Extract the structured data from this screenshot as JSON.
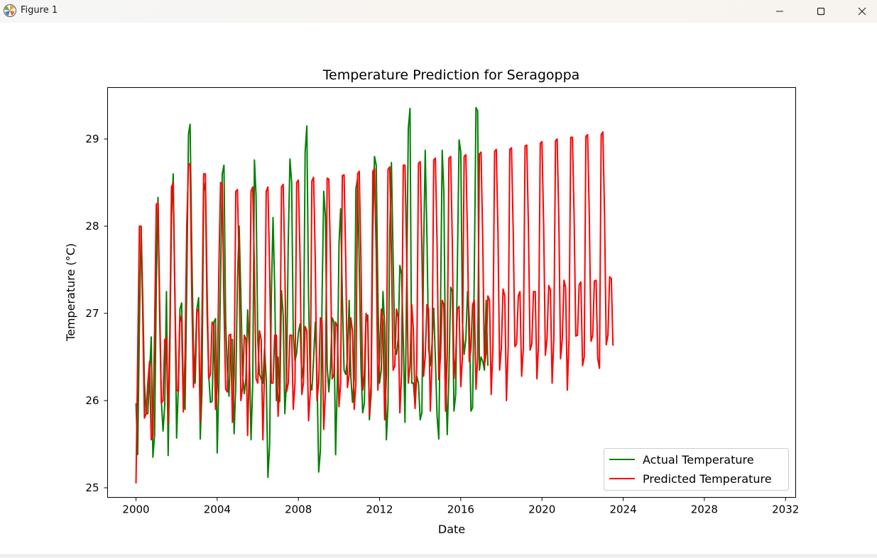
{
  "window": {
    "title": "Figure 1",
    "icons": {
      "app": "matplotlib-icon",
      "minimize": "minimize-icon",
      "maximize": "maximize-icon",
      "close": "close-icon"
    }
  },
  "chart_data": {
    "type": "line",
    "title": "Temperature Prediction for Seragoppa",
    "xlabel": "Date",
    "ylabel": "Temperature (°C)",
    "xlim": [
      1998.6,
      2032.5
    ],
    "ylim": [
      24.89,
      29.59
    ],
    "x_ticks": [
      2000,
      2004,
      2008,
      2012,
      2016,
      2020,
      2024,
      2028,
      2032
    ],
    "y_ticks": [
      25,
      26,
      27,
      28,
      29
    ],
    "grid": false,
    "legend_position": "lower-right",
    "series": [
      {
        "name": "Actual Temperature",
        "color": "#008000",
        "x_start": 2000.0,
        "x_step": 0.0833333,
        "values": [
          25.97,
          25.38,
          26.85,
          28.0,
          27.2,
          26.2,
          25.85,
          25.85,
          26.3,
          26.73,
          25.35,
          25.6,
          27.3,
          28.33,
          27.1,
          26.0,
          25.65,
          25.95,
          27.25,
          25.37,
          26.6,
          28.1,
          28.6,
          27.2,
          25.57,
          26.15,
          27.05,
          27.12,
          26.1,
          25.9,
          27.3,
          29.05,
          29.17,
          27.7,
          26.55,
          26.2,
          27.05,
          27.18,
          25.56,
          26.1,
          28.4,
          28.5,
          27.0,
          26.3,
          25.98,
          25.99,
          26.9,
          26.94,
          25.4,
          26.2,
          27.4,
          28.6,
          28.7,
          26.9,
          26.35,
          26.05,
          26.7,
          26.7,
          25.62,
          26.2,
          27.4,
          28.0,
          27.2,
          26.3,
          26.08,
          26.25,
          27.04,
          26.58,
          25.55,
          26.2,
          28.76,
          28.35,
          26.7,
          26.3,
          26.25,
          26.2,
          26.6,
          26.25,
          25.12,
          25.5,
          27.2,
          28.1,
          27.3,
          26.0,
          26.5,
          25.99,
          27.26,
          26.98,
          25.85,
          26.23,
          27.8,
          28.77,
          28.5,
          26.75,
          26.45,
          26.55,
          26.78,
          26.88,
          26.25,
          26.4,
          28.85,
          29.15,
          27.2,
          26.2,
          26.12,
          26.48,
          26.9,
          26.3,
          25.18,
          25.43,
          27.15,
          28.4,
          28.1,
          26.4,
          26.1,
          26.38,
          26.95,
          26.9,
          25.38,
          26.2,
          27.8,
          28.2,
          27.2,
          26.35,
          26.3,
          26.48,
          27.15,
          26.28,
          25.98,
          26.25,
          28.43,
          28.55,
          27.55,
          26.4,
          25.86,
          25.97,
          26.95,
          26.98,
          25.78,
          26.07,
          27.95,
          28.8,
          28.7,
          27.25,
          26.2,
          26.35,
          27.25,
          26.85,
          25.55,
          25.95,
          27.9,
          28.73,
          27.63,
          26.6,
          26.53,
          26.7,
          27.55,
          27.45,
          26.7,
          25.75,
          27.3,
          29.12,
          29.35,
          26.2,
          26.2,
          25.94,
          26.28,
          26.2,
          25.78,
          25.86,
          27.7,
          28.87,
          27.9,
          26.6,
          26.4,
          26.65,
          27.06,
          26.48,
          25.82,
          25.56,
          27.05,
          28.87,
          28.4,
          26.4,
          25.61,
          26.3,
          27.3,
          27.25,
          25.88,
          26.07,
          27.55,
          28.99,
          28.85,
          26.9,
          26.53,
          26.7,
          27.25,
          26.95,
          25.88,
          25.92,
          27.45,
          29.36,
          29.32,
          26.35,
          26.5,
          26.45,
          26.35,
          27.15,
          26.4
        ]
      },
      {
        "name": "Predicted Temperature",
        "color": "#ff0000",
        "x_start": 2000.0,
        "x_step": 0.0833333,
        "values": [
          25.05,
          26.5,
          28.0,
          28.0,
          27.0,
          25.8,
          25.85,
          26.2,
          26.45,
          25.55,
          25.6,
          26.8,
          28.25,
          28.27,
          26.95,
          25.97,
          26.0,
          26.7,
          26.72,
          25.73,
          26.8,
          28.45,
          28.5,
          27.2,
          26.13,
          26.1,
          26.98,
          26.9,
          25.87,
          26.5,
          28.0,
          28.7,
          28.72,
          27.2,
          26.15,
          26.5,
          27.05,
          27.02,
          25.75,
          26.9,
          28.6,
          28.6,
          27.3,
          26.25,
          26.3,
          26.9,
          26.86,
          25.9,
          26.15,
          27.5,
          28.5,
          28.48,
          27.1,
          26.13,
          26.1,
          26.75,
          26.76,
          25.75,
          26.3,
          28.4,
          28.42,
          27.5,
          26.0,
          26.15,
          26.75,
          26.7,
          25.6,
          26.4,
          28.4,
          28.45,
          27.5,
          26.25,
          26.2,
          26.8,
          26.7,
          25.55,
          26.4,
          28.4,
          28.45,
          27.5,
          26.2,
          26.2,
          26.75,
          26.75,
          25.82,
          26.2,
          28.45,
          28.48,
          27.55,
          26.1,
          26.2,
          26.75,
          26.75,
          25.9,
          26.2,
          28.5,
          28.53,
          27.6,
          26.07,
          26.2,
          26.85,
          26.8,
          25.77,
          26.1,
          28.52,
          28.56,
          27.6,
          26.0,
          26.2,
          26.95,
          26.9,
          25.67,
          26.1,
          28.55,
          28.54,
          27.6,
          26.25,
          26.3,
          26.9,
          26.85,
          25.93,
          26.2,
          28.58,
          28.59,
          27.6,
          26.15,
          26.3,
          26.95,
          26.8,
          25.9,
          26.2,
          28.6,
          28.63,
          27.6,
          26.12,
          26.3,
          27.0,
          26.9,
          25.83,
          26.2,
          28.63,
          28.66,
          27.7,
          26.12,
          26.5,
          27.05,
          26.9,
          25.78,
          26.3,
          28.65,
          28.68,
          27.7,
          26.35,
          26.4,
          27.05,
          26.95,
          25.86,
          26.3,
          28.7,
          28.7,
          27.7,
          26.2,
          26.4,
          27.1,
          26.8,
          25.91,
          26.4,
          28.72,
          28.74,
          27.75,
          26.28,
          26.5,
          27.1,
          27.05,
          25.88,
          26.45,
          28.76,
          28.78,
          27.8,
          26.24,
          26.5,
          27.15,
          27.1,
          25.88,
          26.5,
          28.78,
          28.8,
          27.8,
          26.25,
          26.5,
          27.05,
          27.08,
          26.16,
          26.5,
          28.8,
          28.82,
          27.85,
          26.45,
          26.6,
          27.1,
          27.15,
          26.13,
          26.5,
          28.83,
          28.85,
          27.85,
          26.4,
          26.55,
          27.2,
          27.15,
          26.07,
          26.6,
          28.86,
          28.88,
          27.9,
          26.35,
          26.6,
          27.28,
          27.2,
          26.0,
          26.6,
          28.88,
          28.9,
          27.95,
          26.62,
          26.65,
          27.2,
          27.25,
          26.28,
          26.6,
          28.92,
          28.93,
          28.0,
          26.58,
          26.65,
          27.25,
          27.25,
          26.25,
          26.65,
          28.95,
          28.97,
          28.0,
          26.52,
          26.7,
          27.32,
          27.27,
          26.2,
          26.7,
          28.98,
          29.0,
          28.05,
          26.48,
          26.7,
          27.38,
          27.3,
          26.12,
          26.7,
          29.02,
          29.02,
          28.1,
          26.74,
          26.75,
          27.33,
          27.36,
          26.4,
          26.5,
          29.03,
          29.05,
          28.1,
          26.68,
          26.75,
          27.37,
          27.38,
          26.48,
          26.37,
          29.05,
          29.08,
          28.15,
          26.64,
          26.75,
          27.42,
          27.4,
          26.63
        ]
      }
    ]
  }
}
